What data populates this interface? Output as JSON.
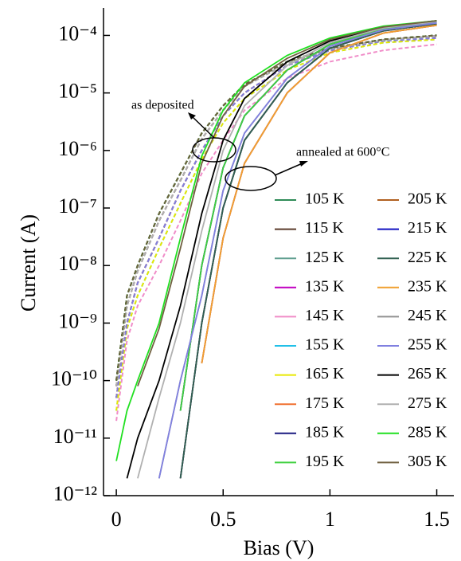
{
  "chart_data": {
    "type": "line",
    "xlabel": "Bias (V)",
    "ylabel": "Current (A)",
    "log_y": true,
    "annotations": [
      "as deposited",
      "annealed at 600°C"
    ],
    "xlim": [
      -0.06,
      1.58
    ],
    "xticks": [
      0,
      0.5,
      1,
      1.5
    ],
    "ylim": [
      1e-12,
      0.0003
    ],
    "yticks": [
      {
        "value": 1e-12,
        "label": "10⁻¹²"
      },
      {
        "value": 1e-11,
        "label": "10⁻¹¹"
      },
      {
        "value": 1e-10,
        "label": "10⁻¹⁰"
      },
      {
        "value": 1e-09,
        "label": "10⁻⁹"
      },
      {
        "value": 1e-08,
        "label": "10⁻⁸"
      },
      {
        "value": 1e-07,
        "label": "10⁻⁷"
      },
      {
        "value": 1e-06,
        "label": "10⁻⁶"
      },
      {
        "value": 1e-05,
        "label": "10⁻⁵"
      },
      {
        "value": 0.0001,
        "label": "10⁻⁴"
      }
    ],
    "x": [
      0,
      0.05,
      0.1,
      0.2,
      0.3,
      0.4,
      0.5,
      0.6,
      0.8,
      1.0,
      1.25,
      1.5
    ],
    "series": [
      {
        "name": "105 K",
        "color": "#2e8b57",
        "values": [
          null,
          null,
          null,
          null,
          3e-11,
          1e-08,
          5e-07,
          4e-06,
          2.5e-05,
          7e-05,
          0.00013,
          0.00017
        ],
        "deposited_values": [
          1e-10,
          3e-09,
          1e-08,
          8e-08,
          4e-07,
          2e-06,
          6e-06,
          1.4e-05,
          3.5e-05,
          6e-05,
          8.5e-05,
          0.0001
        ]
      },
      {
        "name": "115 K",
        "color": "#5a3a2a",
        "values": [
          null,
          null,
          null,
          null,
          2e-12,
          1e-09,
          1e-07,
          1.5e-06,
          1.5e-05,
          6e-05,
          0.00012,
          0.00016
        ],
        "deposited_values": [
          8e-11,
          2e-09,
          8e-09,
          6e-08,
          3e-07,
          1.6e-06,
          5e-06,
          1.3e-05,
          3.3e-05,
          5.8e-05,
          8.3e-05,
          9.8e-05
        ]
      },
      {
        "name": "125 K",
        "color": "#5f9e8f",
        "values": [
          null,
          null,
          null,
          null,
          2e-12,
          1e-09,
          1e-07,
          1.5e-06,
          1.5e-05,
          6e-05,
          0.00012,
          0.00016
        ],
        "deposited_values": [
          5e-11,
          1e-09,
          5e-09,
          3e-08,
          2e-07,
          1e-06,
          4e-06,
          1e-05,
          3e-05,
          5.5e-05,
          8e-05,
          9e-05
        ]
      },
      {
        "name": "135 K",
        "color": "#c000c0",
        "values": [
          null,
          null,
          null,
          null,
          null,
          2e-10,
          3e-08,
          6e-07,
          1e-05,
          5e-05,
          0.00011,
          0.00015
        ],
        "deposited_values": [
          5e-11,
          1e-09,
          5e-09,
          3e-08,
          2e-07,
          1e-06,
          4e-06,
          1e-05,
          3e-05,
          5.5e-05,
          8e-05,
          9e-05
        ]
      },
      {
        "name": "145 K",
        "color": "#f08cc8",
        "values": [
          null,
          null,
          null,
          null,
          null,
          2e-10,
          3e-08,
          6e-07,
          1e-05,
          5e-05,
          0.00011,
          0.00015
        ],
        "deposited_values": [
          2e-11,
          5e-10,
          2e-09,
          1e-08,
          6e-08,
          4e-07,
          1.5e-06,
          5e-06,
          1.8e-05,
          3.5e-05,
          5.5e-05,
          7e-05
        ]
      },
      {
        "name": "155 K",
        "color": "#22c0e8",
        "values": [
          null,
          null,
          null,
          null,
          2e-12,
          1e-09,
          1e-07,
          1.5e-06,
          1.5e-05,
          6e-05,
          0.00012,
          0.00016
        ],
        "deposited_values": [
          3e-11,
          8e-10,
          3e-09,
          2e-08,
          1.2e-07,
          7e-07,
          3e-06,
          8e-06,
          2.5e-05,
          5e-05,
          7.5e-05,
          8.5e-05
        ]
      },
      {
        "name": "165 K",
        "color": "#e8e800",
        "values": [
          null,
          null,
          null,
          null,
          2e-12,
          1e-09,
          1e-07,
          1.5e-06,
          1.5e-05,
          6e-05,
          0.00012,
          0.00016
        ],
        "deposited_values": [
          3e-11,
          8e-10,
          3e-09,
          2e-08,
          1.2e-07,
          7e-07,
          3e-06,
          8e-06,
          2.5e-05,
          5e-05,
          7.5e-05,
          8.5e-05
        ]
      },
      {
        "name": "175 K",
        "color": "#f07030",
        "values": [
          null,
          null,
          null,
          null,
          2e-12,
          1e-09,
          1e-07,
          1.5e-06,
          1.5e-05,
          6e-05,
          0.00012,
          0.00016
        ],
        "deposited_values": [
          5e-11,
          1e-09,
          5e-09,
          3e-08,
          2e-07,
          1e-06,
          4e-06,
          1e-05,
          3e-05,
          5.5e-05,
          8e-05,
          9e-05
        ]
      },
      {
        "name": "185 K",
        "color": "#1a1a80",
        "values": [
          null,
          null,
          null,
          null,
          3e-11,
          1e-08,
          5e-07,
          4e-06,
          2.5e-05,
          7e-05,
          0.00013,
          0.00017
        ],
        "deposited_values": [
          8e-11,
          2e-09,
          8e-09,
          6e-08,
          3e-07,
          1.6e-06,
          5e-06,
          1.3e-05,
          3.3e-05,
          5.8e-05,
          8.3e-05,
          9.8e-05
        ]
      },
      {
        "name": "195 K",
        "color": "#40d040",
        "values": [
          null,
          null,
          null,
          null,
          3e-11,
          1e-08,
          5e-07,
          4e-06,
          2.5e-05,
          7e-05,
          0.00013,
          0.00017
        ],
        "deposited_values": [
          1e-10,
          3e-09,
          1e-08,
          8e-08,
          4e-07,
          2e-06,
          6e-06,
          1.4e-05,
          3.5e-05,
          6e-05,
          8.5e-05,
          0.0001
        ]
      },
      {
        "name": "205 K",
        "color": "#b06020",
        "values": [
          null,
          null,
          null,
          null,
          null,
          2e-10,
          3e-08,
          6e-07,
          1e-05,
          5e-05,
          0.00011,
          0.00015
        ],
        "deposited_values": [
          8e-11,
          2e-09,
          8e-09,
          6e-08,
          3e-07,
          1.6e-06,
          5e-06,
          1.3e-05,
          3.3e-05,
          5.8e-05,
          8.3e-05,
          9.8e-05
        ]
      },
      {
        "name": "215 K",
        "color": "#1010c0",
        "values": [
          null,
          null,
          null,
          null,
          2e-12,
          1e-09,
          1e-07,
          1.5e-06,
          1.5e-05,
          6e-05,
          0.00012,
          0.00016
        ],
        "deposited_values": [
          5e-11,
          1e-09,
          5e-09,
          3e-08,
          2e-07,
          1e-06,
          4e-06,
          1e-05,
          3e-05,
          5.5e-05,
          8e-05,
          9e-05
        ]
      },
      {
        "name": "225 K",
        "color": "#306050",
        "values": [
          null,
          null,
          null,
          null,
          2e-12,
          1e-09,
          1e-07,
          1.5e-06,
          1.5e-05,
          6e-05,
          0.00012,
          0.00016
        ],
        "deposited_values": [
          1e-10,
          3e-09,
          1e-08,
          8e-08,
          4e-07,
          2e-06,
          6e-06,
          1.4e-05,
          3.5e-05,
          6e-05,
          8.5e-05,
          0.0001
        ]
      },
      {
        "name": "235 K",
        "color": "#f0a030",
        "values": [
          null,
          null,
          null,
          null,
          null,
          2e-10,
          3e-08,
          6e-07,
          1e-05,
          5e-05,
          0.00011,
          0.00015
        ],
        "deposited_values": [
          5e-11,
          1e-09,
          5e-09,
          3e-08,
          2e-07,
          1e-06,
          4e-06,
          1e-05,
          3e-05,
          5.5e-05,
          8e-05,
          9e-05
        ]
      },
      {
        "name": "245 K",
        "color": "#909090",
        "values": [
          null,
          null,
          null,
          2e-12,
          1e-10,
          3e-09,
          2e-07,
          2e-06,
          1.8e-05,
          6.5e-05,
          0.000125,
          0.000165
        ],
        "deposited_values": [
          8e-11,
          2e-09,
          8e-09,
          6e-08,
          3e-07,
          1.6e-06,
          5e-06,
          1.3e-05,
          3.3e-05,
          5.8e-05,
          8.3e-05,
          9.8e-05
        ]
      },
      {
        "name": "255 K",
        "color": "#8080e0",
        "values": [
          null,
          null,
          null,
          2e-12,
          1e-10,
          3e-09,
          2e-07,
          2e-06,
          1.8e-05,
          6.5e-05,
          0.000125,
          0.000165
        ],
        "deposited_values": [
          5e-11,
          1e-09,
          5e-09,
          3e-08,
          2e-07,
          1e-06,
          4e-06,
          1e-05,
          3e-05,
          5.5e-05,
          8e-05,
          9e-05
        ]
      },
      {
        "name": "265 K",
        "color": "#000000",
        "values": [
          null,
          2e-12,
          1e-11,
          1e-10,
          2e-09,
          8e-08,
          1.5e-06,
          8e-06,
          3.5e-05,
          8e-05,
          0.00014,
          0.00018
        ],
        "deposited_values": [
          1e-10,
          3e-09,
          1e-08,
          8e-08,
          4e-07,
          2e-06,
          6e-06,
          1.4e-05,
          3.5e-05,
          6e-05,
          8.5e-05,
          0.0001
        ]
      },
      {
        "name": "275 K",
        "color": "#b0b0b0",
        "values": [
          null,
          null,
          2e-12,
          5e-11,
          1e-09,
          4e-08,
          1e-06,
          6e-06,
          3e-05,
          7.5e-05,
          0.000135,
          0.000175
        ],
        "deposited_values": [
          8e-11,
          2e-09,
          8e-09,
          6e-08,
          3e-07,
          1.6e-06,
          5e-06,
          1.3e-05,
          3.3e-05,
          5.8e-05,
          8.3e-05,
          9.8e-05
        ]
      },
      {
        "name": "285 K",
        "color": "#20e020",
        "values": [
          4e-12,
          3e-11,
          1e-10,
          1e-09,
          3e-08,
          8e-07,
          5e-06,
          1.5e-05,
          4.5e-05,
          9e-05,
          0.000145,
          0.00018
        ],
        "deposited_values": [
          1e-10,
          3e-09,
          1e-08,
          8e-08,
          4e-07,
          2e-06,
          6e-06,
          1.4e-05,
          3.5e-05,
          6e-05,
          8.5e-05,
          0.0001
        ]
      },
      {
        "name": "305 K",
        "color": "#706040",
        "values": [
          null,
          null,
          8e-11,
          8e-10,
          2e-08,
          6e-07,
          4e-06,
          1.3e-05,
          4e-05,
          8.5e-05,
          0.00014,
          0.00018
        ],
        "deposited_values": [
          1e-10,
          3e-09,
          1e-08,
          8e-08,
          4e-07,
          2e-06,
          6e-06,
          1.4e-05,
          3.5e-05,
          6e-05,
          8.5e-05,
          0.0001
        ]
      }
    ]
  }
}
